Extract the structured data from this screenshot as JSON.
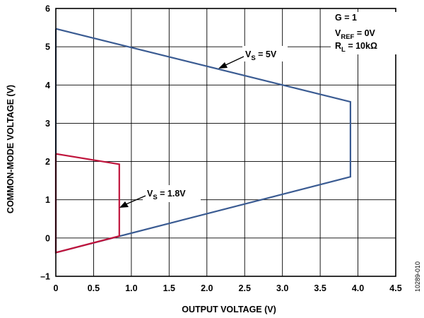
{
  "chart_data": {
    "type": "line",
    "xlabel": "OUTPUT VOLTAGE (V)",
    "ylabel": "COMMON-MODE VOLTAGE (V)",
    "xlim": [
      0,
      4.5
    ],
    "ylim": [
      -1,
      6
    ],
    "xticks": [
      0,
      0.5,
      1.0,
      1.5,
      2.0,
      2.5,
      3.0,
      3.5,
      4.0,
      4.5
    ],
    "xtick_labels": [
      "0",
      "0.5",
      "1.0",
      "1.5",
      "2.0",
      "2.5",
      "3.0",
      "3.5",
      "4.0",
      "4.5"
    ],
    "yticks": [
      -1,
      0,
      1,
      2,
      3,
      4,
      5,
      6
    ],
    "ytick_labels": [
      "–1",
      "0",
      "1",
      "2",
      "3",
      "4",
      "5",
      "6"
    ],
    "grid": true,
    "series": [
      {
        "label_main": "V",
        "label_sub": "S",
        "label_rest": " = 5V",
        "color": "#3a5b92",
        "points": [
          [
            0,
            5.47
          ],
          [
            3.9,
            3.56
          ],
          [
            3.9,
            1.6
          ],
          [
            0,
            -0.38
          ],
          [
            0,
            5.47
          ]
        ]
      },
      {
        "label_main": "V",
        "label_sub": "S",
        "label_rest": " = 1.8V",
        "color": "#c0143c",
        "points": [
          [
            0,
            2.2
          ],
          [
            0.84,
            1.93
          ],
          [
            0.84,
            0.05
          ],
          [
            0,
            -0.38
          ],
          [
            0,
            2.2
          ]
        ]
      }
    ],
    "annotations": {
      "gain": "G = 1",
      "vref_main": "V",
      "vref_sub": "REF",
      "vref_rest": " = 0V",
      "rl_main": "R",
      "rl_sub": "L",
      "rl_rest": " = 10kΩ"
    },
    "figure_id": "10289-010"
  }
}
